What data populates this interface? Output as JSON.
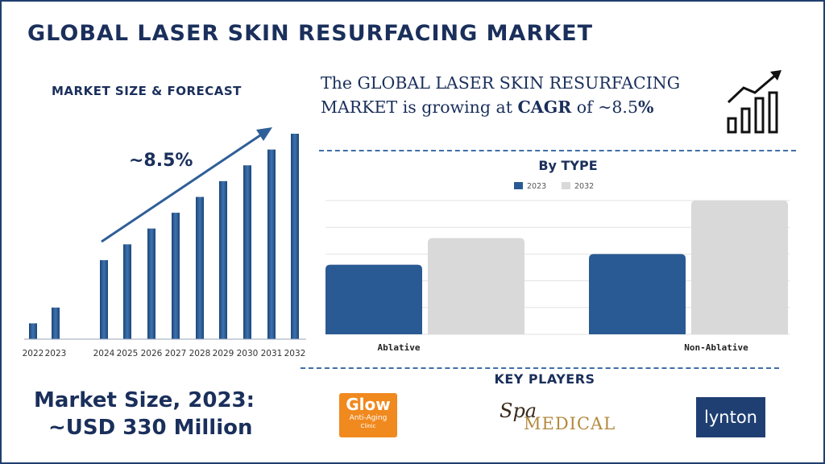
{
  "page": {
    "title": "GLOBAL LASER SKIN RESURFACING MARKET",
    "forecast_title": "MARKET SIZE & FORECAST",
    "cagr_label": "~8.5%",
    "headline": {
      "prefix": "The GLOBAL LASER SKIN RESURFACING MARKET  is growing at ",
      "cagr_word": "CAGR",
      "mid": " of ~8.5",
      "pct": "%"
    },
    "by_type_title": "By TYPE",
    "key_players_title": "KEY PLAYERS",
    "market_size_line1": "Market Size, 2023:",
    "market_size_line2": "~USD 330 Million"
  },
  "key_players": {
    "glow": {
      "word": "Glow",
      "sub": "Anti-Aging",
      "sub2": "Clinic"
    },
    "spa": {
      "word": "Spa",
      "sub": "MEDICAL"
    },
    "lynton": {
      "word": "lynton"
    }
  },
  "colors": {
    "title": "#1a2f5b",
    "bar_blue": "#2a5a93",
    "bar_gray": "#d9d9d9",
    "arrow": "#2f5f98",
    "glow_orange": "#f0891e",
    "lynton_blue": "#1f3f73"
  },
  "icons": [
    "growth-chart-icon",
    "trend-arrow-icon"
  ],
  "chart_data": [
    {
      "type": "bar",
      "title": "MARKET SIZE & FORECAST",
      "categories": [
        "2022",
        "2023",
        "2024",
        "2025",
        "2026",
        "2027",
        "2028",
        "2029",
        "2030",
        "2031",
        "2032"
      ],
      "values": [
        1.0,
        2.0,
        5.0,
        6.0,
        7.0,
        8.0,
        9.0,
        10.0,
        11.0,
        12.0,
        13.0
      ],
      "annotation": "~8.5%",
      "grid": false
    },
    {
      "type": "bar",
      "title": "By TYPE",
      "categories": [
        "Ablative",
        "Non-Ablative"
      ],
      "series": [
        {
          "name": "2023",
          "values": [
            26,
            30
          ],
          "color": "#2a5a93"
        },
        {
          "name": "2032",
          "values": [
            36,
            50
          ],
          "color": "#d9d9d9"
        }
      ],
      "ylim": [
        0,
        50
      ],
      "grid": true,
      "legend": "top"
    }
  ]
}
